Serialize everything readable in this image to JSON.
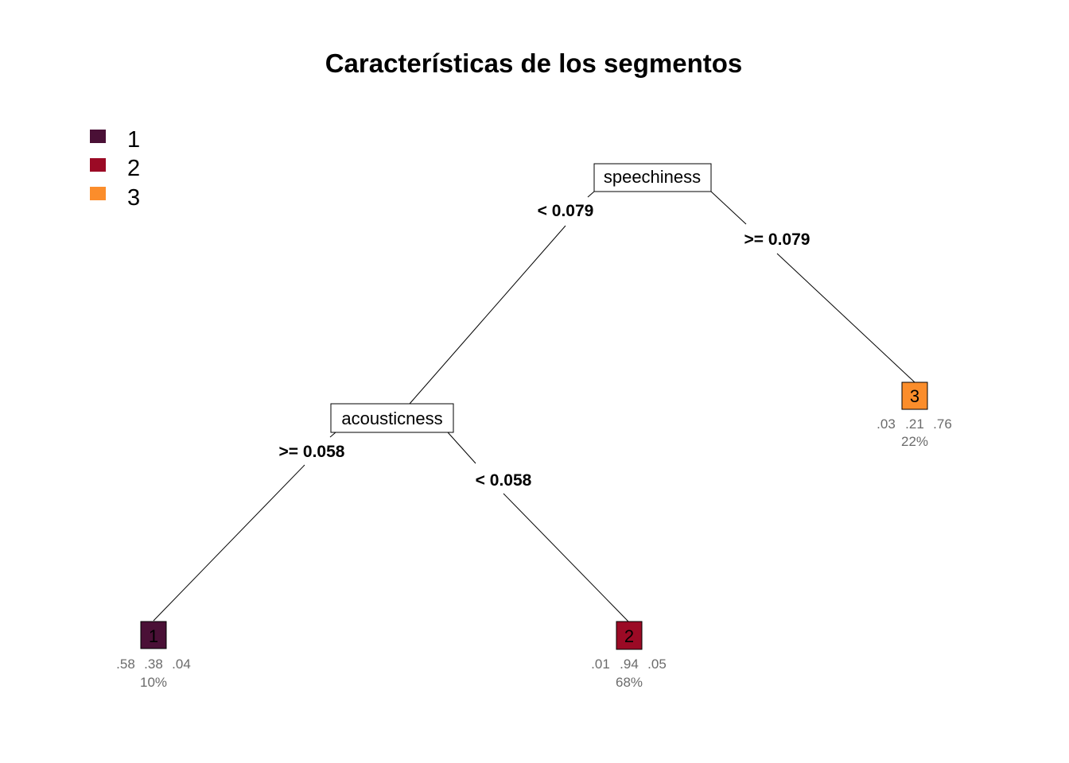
{
  "title": "Características de los segmentos",
  "legend": [
    {
      "label": "1",
      "color": "#4a1036"
    },
    {
      "label": "2",
      "color": "#9b0a25"
    },
    {
      "label": "3",
      "color": "#fb8d2b"
    }
  ],
  "tree": {
    "root": {
      "variable": "speechiness",
      "left_label": "< 0.079",
      "right_label": ">= 0.079"
    },
    "internal": {
      "variable": "acousticness",
      "left_label": ">= 0.058",
      "right_label": "< 0.058"
    },
    "leaves": [
      {
        "class": "1",
        "color": "#4a1036",
        "probs": [
          ".58",
          ".38",
          ".04"
        ],
        "percent": "10%"
      },
      {
        "class": "2",
        "color": "#9b0a25",
        "probs": [
          ".01",
          ".94",
          ".05"
        ],
        "percent": "68%"
      },
      {
        "class": "3",
        "color": "#fb8d2b",
        "probs": [
          ".03",
          ".21",
          ".76"
        ],
        "percent": "22%"
      }
    ]
  }
}
